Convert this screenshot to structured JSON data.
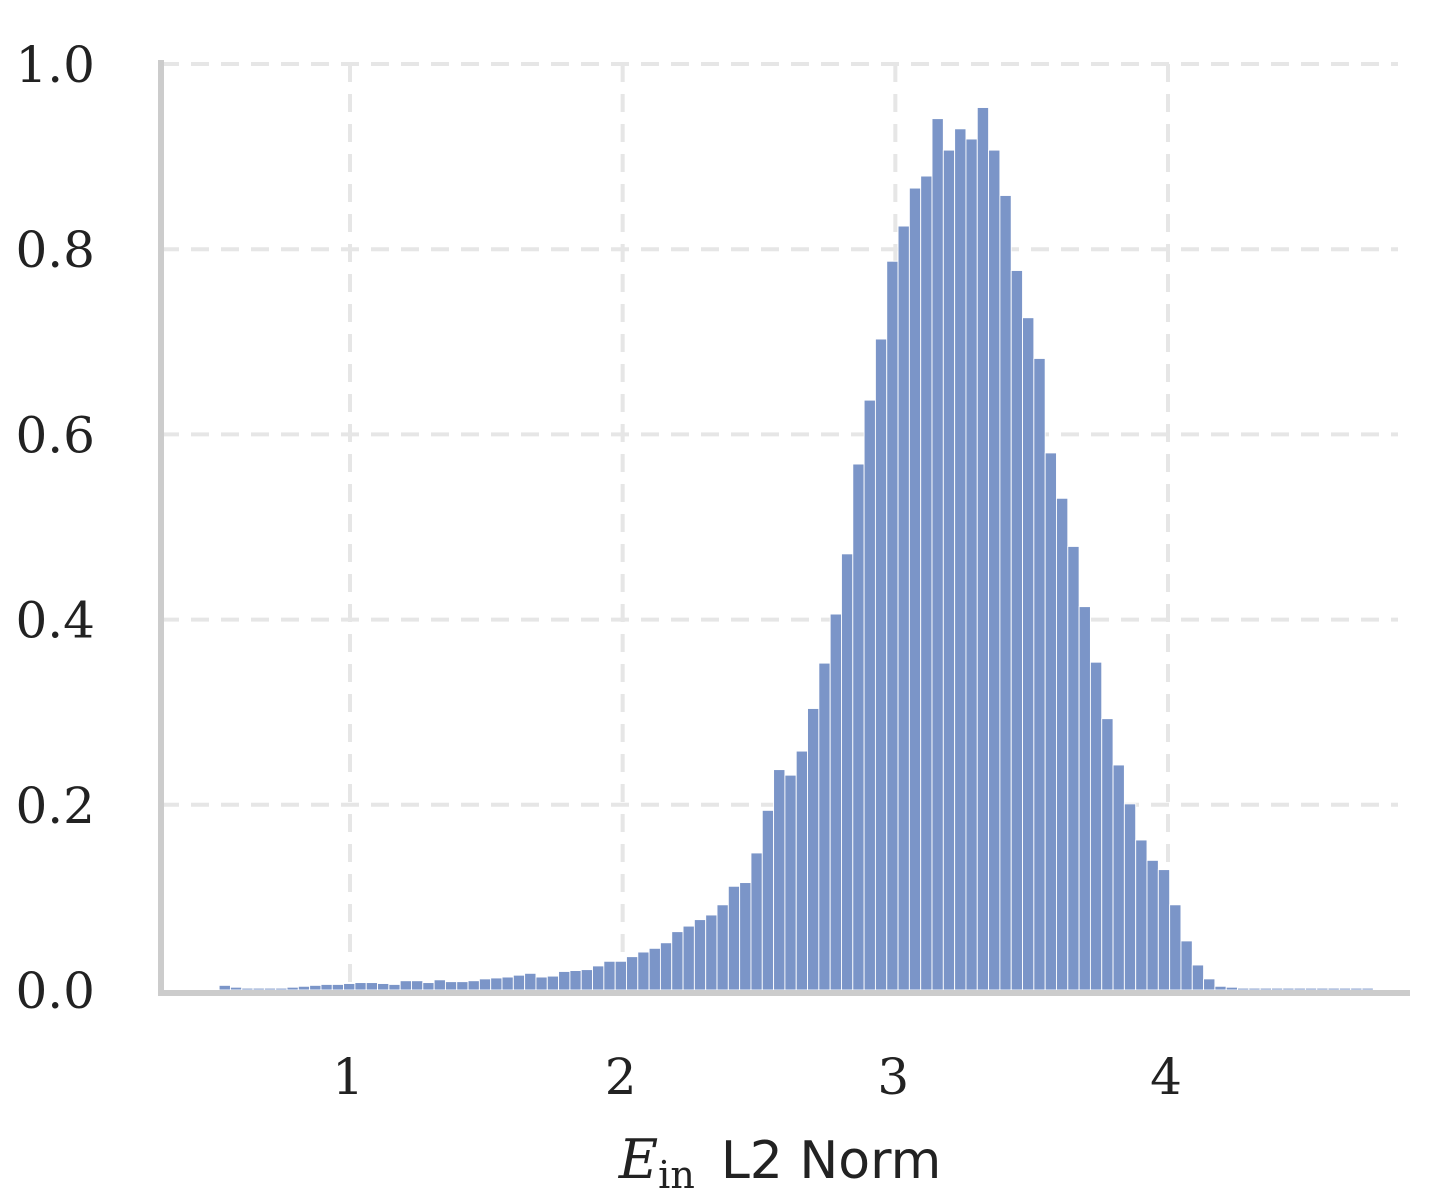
{
  "chart_data": {
    "type": "bar",
    "title": "",
    "xlabel": {
      "symbol": "E",
      "subscript": "in",
      "text": "L2 Norm"
    },
    "ylabel": "",
    "xlim": [
      0.3,
      4.85
    ],
    "ylim": [
      0,
      1.0
    ],
    "xticks": [
      1,
      2,
      3,
      4
    ],
    "xtick_labels": [
      "1",
      "2",
      "3",
      "4"
    ],
    "yticks": [
      0.0,
      0.2,
      0.4,
      0.6,
      0.8,
      1.0
    ],
    "ytick_labels": [
      "0.0",
      "0.2",
      "0.4",
      "0.6",
      "0.8",
      "1.0"
    ],
    "grid": true,
    "bar_color": "#7b95c8",
    "bin_start": 0.52,
    "bin_width": 0.0415,
    "values": [
      0.005,
      0.003,
      0.002,
      0.002,
      0.002,
      0.002,
      0.003,
      0.004,
      0.005,
      0.006,
      0.006,
      0.007,
      0.008,
      0.008,
      0.007,
      0.006,
      0.01,
      0.01,
      0.008,
      0.011,
      0.009,
      0.009,
      0.01,
      0.012,
      0.013,
      0.014,
      0.016,
      0.018,
      0.014,
      0.015,
      0.02,
      0.021,
      0.022,
      0.026,
      0.031,
      0.031,
      0.036,
      0.041,
      0.045,
      0.051,
      0.063,
      0.069,
      0.076,
      0.081,
      0.092,
      0.112,
      0.116,
      0.148,
      0.194,
      0.238,
      0.232,
      0.258,
      0.304,
      0.353,
      0.406,
      0.471,
      0.568,
      0.637,
      0.703,
      0.787,
      0.825,
      0.866,
      0.879,
      0.941,
      0.907,
      0.93,
      0.919,
      0.953,
      0.907,
      0.858,
      0.777,
      0.726,
      0.682,
      0.58,
      0.531,
      0.479,
      0.414,
      0.354,
      0.293,
      0.243,
      0.201,
      0.162,
      0.14,
      0.13,
      0.092,
      0.053,
      0.027,
      0.012,
      0.004,
      0.003,
      0.002,
      0.002,
      0.002,
      0.002,
      0.002,
      0.002,
      0.002,
      0.002,
      0.002,
      0.002,
      0.002,
      0.002
    ]
  }
}
